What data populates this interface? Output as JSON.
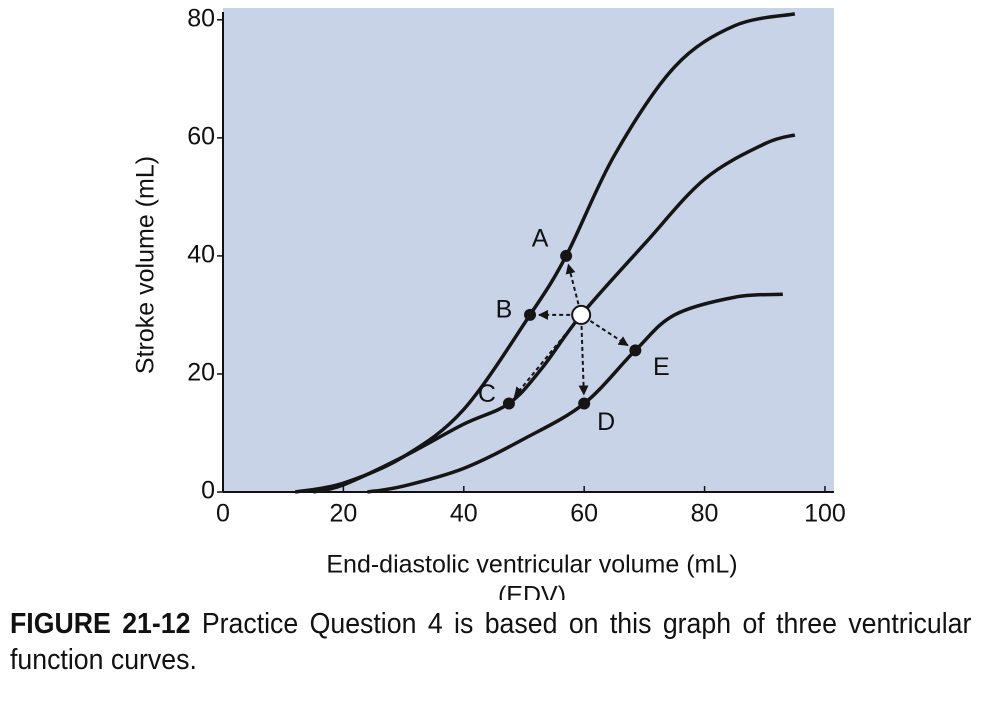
{
  "chart_data": {
    "type": "line",
    "x_label": "End-diastolic ventricular volume (mL)",
    "x_label_2": "(EDV)",
    "y_label": "Stroke volume (mL)",
    "xlim": [
      0,
      101.5
    ],
    "ylim": [
      0,
      82
    ],
    "xticks": [
      0,
      20,
      40,
      60,
      80,
      100
    ],
    "yticks": [
      0,
      20,
      40,
      60,
      80
    ],
    "background": "#c9d3e8",
    "series": [
      {
        "color": "#151515",
        "x": [
          12,
          20,
          30,
          40,
          51,
          57,
          65,
          75,
          85,
          95
        ],
        "values": [
          0,
          1.5,
          6,
          14,
          30,
          40,
          57,
          72,
          79,
          81
        ]
      },
      {
        "color": "#151515",
        "x": [
          15,
          20,
          30,
          40,
          47.5,
          53,
          59.5,
          70,
          80,
          90,
          95
        ],
        "values": [
          0,
          1.2,
          6,
          11.5,
          15,
          21,
          30,
          42,
          53,
          59,
          60.5
        ]
      },
      {
        "color": "#151515",
        "x": [
          24,
          30,
          40,
          50,
          60,
          68.5,
          75,
          85,
          93
        ],
        "values": [
          0,
          1,
          4,
          9,
          15,
          24,
          30,
          33,
          33.5
        ]
      }
    ],
    "points": [
      {
        "label": "A",
        "x": 57,
        "y": 40
      },
      {
        "label": "B",
        "x": 51,
        "y": 30
      },
      {
        "label": "C",
        "x": 47.5,
        "y": 15
      },
      {
        "label": "D",
        "x": 60,
        "y": 15
      },
      {
        "label": "E",
        "x": 68.5,
        "y": 24
      }
    ],
    "reference_point": {
      "x": 59.5,
      "y": 30
    }
  },
  "caption": {
    "label": "FIGURE 21-12",
    "text": "Practice Question 4 is based on this graph of three ventricular function curves."
  }
}
